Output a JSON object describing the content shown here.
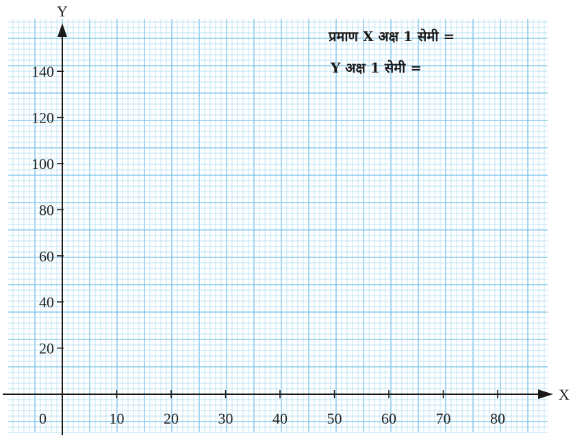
{
  "chart_data": {
    "type": "scatter",
    "title": "",
    "xlabel": "X",
    "ylabel": "Y",
    "x_ticks": [
      10,
      20,
      30,
      40,
      50,
      60,
      70,
      80
    ],
    "y_ticks": [
      20,
      40,
      60,
      80,
      100,
      120,
      140
    ],
    "origin_label": "0",
    "xlim": [
      0,
      88
    ],
    "ylim": [
      0,
      158
    ],
    "grid": true,
    "series": [],
    "annotations": {
      "scale_line1": "प्रमाण X अक्ष 1 सेमी =",
      "scale_line2": "Y अक्ष 1 सेमी ="
    }
  },
  "colors": {
    "paper": "#ffffff",
    "grid_minor": "#a9d9f2",
    "grid_major": "#74c0e8",
    "axis": "#1a1a1a",
    "text": "#222222"
  }
}
